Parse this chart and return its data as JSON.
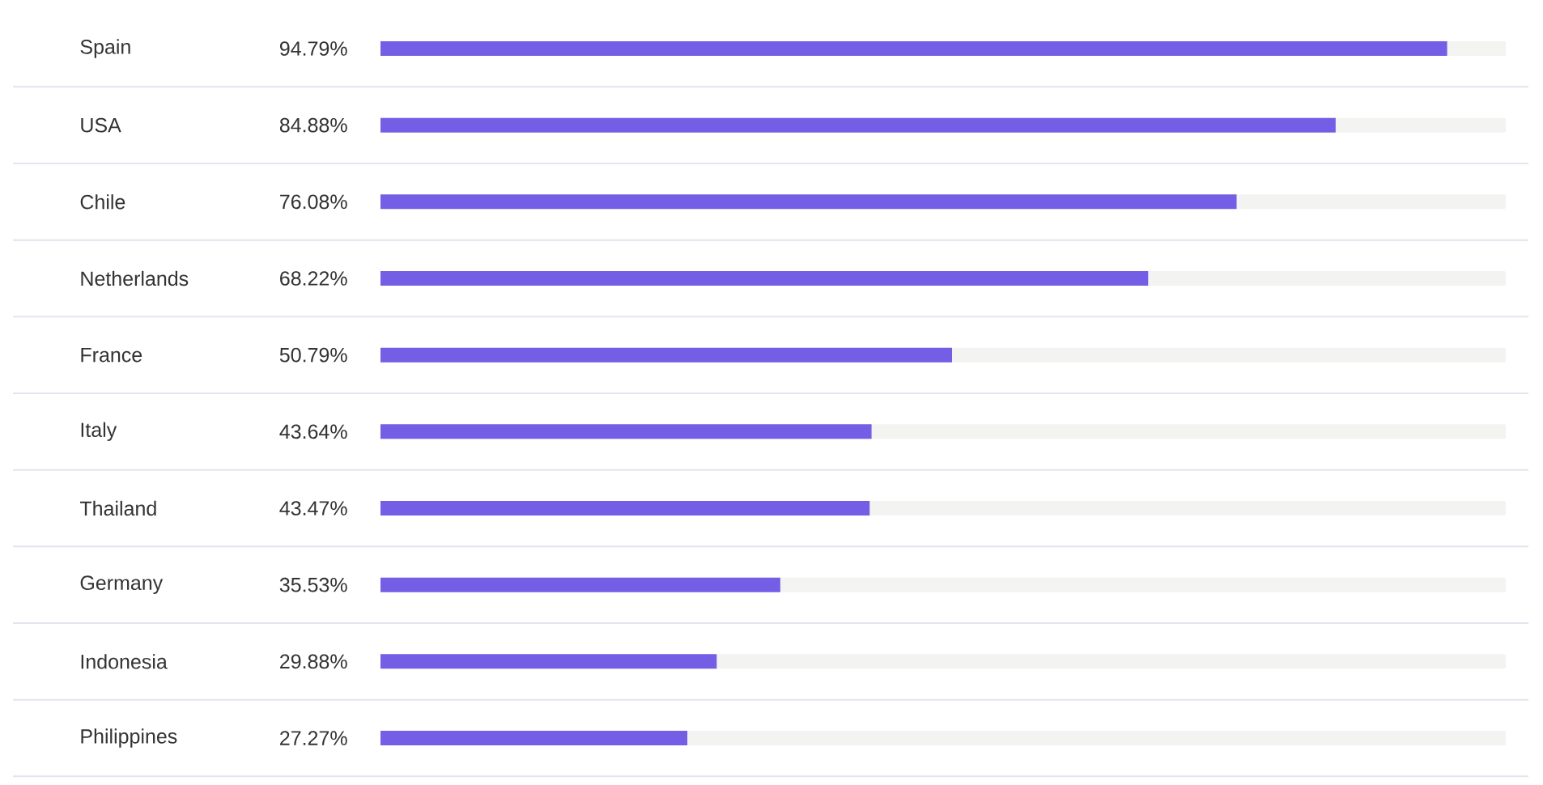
{
  "chart_data": {
    "type": "bar",
    "orientation": "horizontal",
    "categories": [
      "Spain",
      "USA",
      "Chile",
      "Netherlands",
      "France",
      "Italy",
      "Thailand",
      "Germany",
      "Indonesia",
      "Philippines"
    ],
    "values": [
      94.79,
      84.88,
      76.08,
      68.22,
      50.79,
      43.64,
      43.47,
      35.53,
      29.88,
      27.27
    ],
    "value_labels": [
      "94.79%",
      "84.88%",
      "76.08%",
      "68.22%",
      "50.79%",
      "43.64%",
      "43.47%",
      "35.53%",
      "29.88%",
      "27.27%"
    ],
    "color": "#745ee6",
    "xlim": [
      0,
      100
    ],
    "tick_labels": "y",
    "grid": "y"
  }
}
